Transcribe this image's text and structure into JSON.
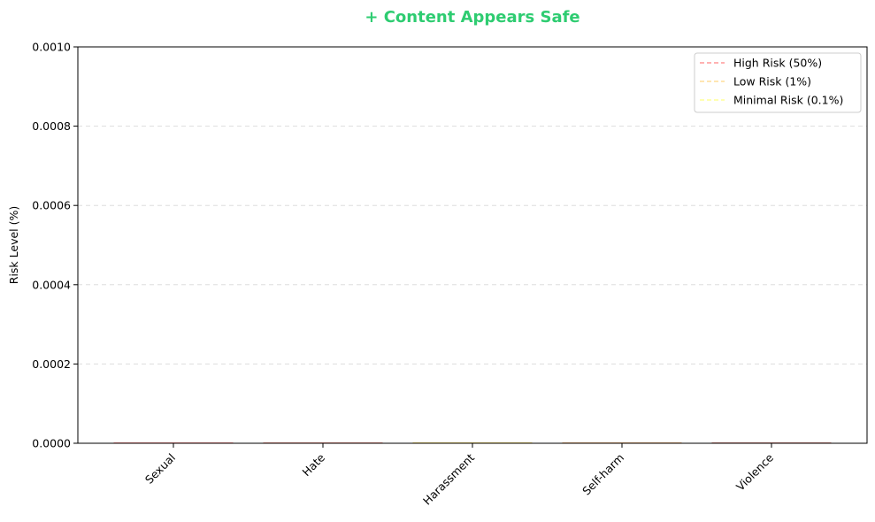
{
  "chart_data": {
    "type": "bar",
    "title": "+ Content Appears Safe",
    "title_color": "#2ecc71",
    "xlabel": "",
    "ylabel": "Risk Level (%)",
    "ylim": [
      0,
      0.001
    ],
    "yticks": [
      "0.0000",
      "0.0002",
      "0.0004",
      "0.0006",
      "0.0008",
      "0.0010"
    ],
    "ytick_values": [
      0,
      0.0002,
      0.0004,
      0.0006,
      0.0008,
      0.001
    ],
    "grid": true,
    "categories": [
      "Sexual",
      "Hate",
      "Harassment",
      "Self-harm",
      "Violence"
    ],
    "values": [
      0,
      0,
      0,
      0,
      0
    ],
    "legend_position": "top-right",
    "thresholds": [
      {
        "label": "High Risk (50%)",
        "value": 50,
        "color": "#ff9999"
      },
      {
        "label": "Low Risk (1%)",
        "value": 1,
        "color": "#ffdd99"
      },
      {
        "label": "Minimal Risk (0.1%)",
        "value": 0.1,
        "color": "#ffff99"
      }
    ]
  }
}
